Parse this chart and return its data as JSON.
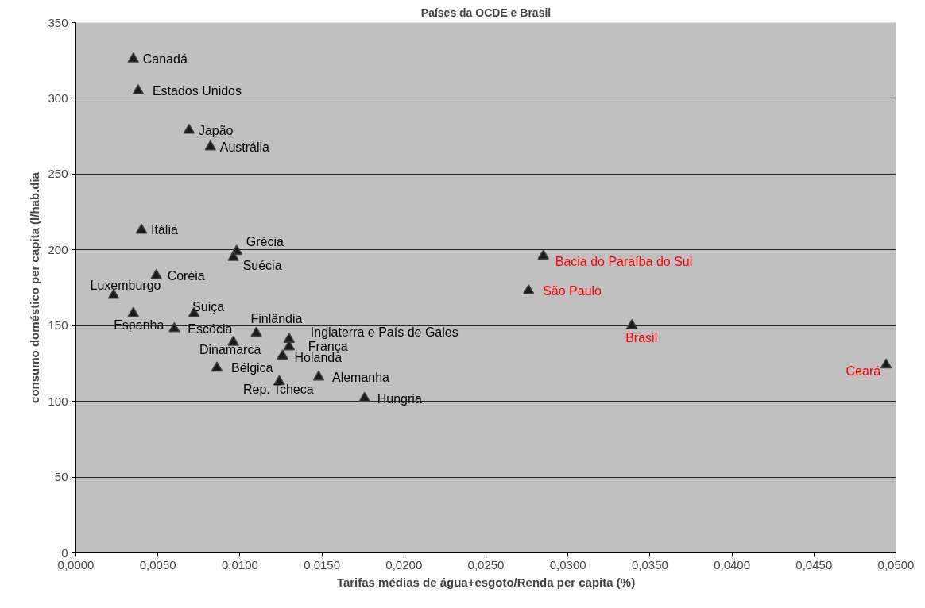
{
  "chart_data": {
    "type": "scatter",
    "title": "Países da OCDE e Brasil",
    "xlabel": "Tarifas médias de água+esgoto/Renda per capita (%)",
    "ylabel": "consumo doméstico per capita (l/hab.dia",
    "xlim": [
      0,
      0.05
    ],
    "ylim": [
      0,
      350
    ],
    "xticks": [
      {
        "value": 0,
        "label": "0,0000"
      },
      {
        "value": 0.005,
        "label": "0,0050"
      },
      {
        "value": 0.01,
        "label": "0,0100"
      },
      {
        "value": 0.015,
        "label": "0,0150"
      },
      {
        "value": 0.02,
        "label": "0,0200"
      },
      {
        "value": 0.025,
        "label": "0,0250"
      },
      {
        "value": 0.03,
        "label": "0,0300"
      },
      {
        "value": 0.035,
        "label": "0,0350"
      },
      {
        "value": 0.04,
        "label": "0,0400"
      },
      {
        "value": 0.045,
        "label": "0,0450"
      },
      {
        "value": 0.05,
        "label": "0,0500"
      }
    ],
    "yticks": [
      0,
      50,
      100,
      150,
      200,
      250,
      300,
      350
    ],
    "grid": "y",
    "marker": "triangle",
    "series": [
      {
        "color": "#1a1a1a",
        "x": [
          0.0035,
          0.0038,
          0.0069,
          0.0082,
          0.004,
          0.0098,
          0.0096,
          0.0049,
          0.0023,
          0.0035,
          0.0072,
          0.006,
          0.011,
          0.013,
          0.013,
          0.0096,
          0.0126,
          0.0086,
          0.0148,
          0.0124,
          0.0176
        ],
        "values": [
          326,
          305,
          279,
          268,
          213,
          199,
          195,
          183,
          170,
          158,
          158,
          148,
          145,
          141,
          136,
          139,
          130,
          122,
          116,
          113,
          102
        ],
        "value_labels": [
          "Canadá",
          "Estados Unidos",
          "Japão",
          "Austrália",
          "Itália",
          "Grécia",
          "Suécia",
          "Coréia",
          "Luxemburgo",
          "Espanha",
          "Suiça",
          "Escócia",
          "Finlândia",
          "Inglaterra e País de Gales",
          "França",
          "Dinamarca",
          "Holanda",
          "Bélgica",
          "Alemanha",
          "Rep. Tcheca",
          "Hungria"
        ]
      },
      {
        "color": "#1a1a1a",
        "x": [
          0.0285,
          0.0276,
          0.0339,
          0.0494
        ],
        "values": [
          196,
          173,
          150,
          124
        ],
        "value_labels": [
          "Bacia do Paraíba do Sul",
          "São Paulo",
          "Brasil",
          "Ceará"
        ]
      }
    ]
  }
}
